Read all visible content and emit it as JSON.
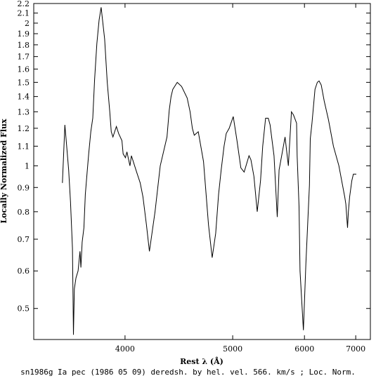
{
  "chart_data": {
    "type": "line",
    "title": "",
    "xlabel": "Rest λ (Å)",
    "ylabel": "Locally Normalized Flux",
    "caption": "sn1986g Ia pec (1986 05 09) deredsh. by hel. vel.   566. km/s ;  Loc. Norm.",
    "xscale": "reciprocal",
    "yscale": "log",
    "xlim": [
      3420,
      7350
    ],
    "ylim": [
      0.43,
      2.2
    ],
    "xticks": [
      4000,
      5000,
      6000,
      7000
    ],
    "xtick_labels": [
      "4000",
      "5000",
      "6000",
      "7000"
    ],
    "yticks": [
      0.5,
      0.6,
      0.7,
      0.8,
      0.9,
      1,
      1.1,
      1.2,
      1.3,
      1.4,
      1.5,
      1.6,
      1.7,
      1.8,
      1.9,
      2,
      2.1,
      2.2
    ],
    "ytick_labels": [
      "0.5",
      "0.6",
      "0.7",
      "0.8",
      "0.9",
      "1",
      "1.1",
      "1.2",
      "1.3",
      "1.4",
      "1.5",
      "1.6",
      "1.7",
      "1.8",
      "1.9",
      "2",
      "2.1",
      "2.2"
    ],
    "grid": false,
    "series": [
      {
        "name": "",
        "color": "#000000",
        "x": [
          3583,
          3598,
          3605,
          3621,
          3632,
          3644,
          3650,
          3656,
          3666,
          3679,
          3691,
          3697,
          3705,
          3716,
          3725,
          3737,
          3747,
          3761,
          3774,
          3786,
          3801,
          3816,
          3830,
          3854,
          3872,
          3890,
          3900,
          3912,
          3937,
          3953,
          3977,
          3986,
          4003,
          4014,
          4037,
          4048,
          4088,
          4116,
          4138,
          4166,
          4190,
          4236,
          4280,
          4338,
          4358,
          4374,
          4390,
          4430,
          4470,
          4522,
          4550,
          4572,
          4590,
          4630,
          4683,
          4734,
          4773,
          4810,
          4841,
          4870,
          4902,
          4926,
          4960,
          5007,
          5050,
          5097,
          5137,
          5197,
          5221,
          5259,
          5302,
          5346,
          5375,
          5414,
          5450,
          5476,
          5531,
          5577,
          5604,
          5692,
          5742,
          5790,
          5822,
          5871,
          5880,
          5911,
          5927,
          5982,
          6024,
          6084,
          6099,
          6128,
          6181,
          6223,
          6255,
          6294,
          6349,
          6431,
          6526,
          6637,
          6758,
          6782,
          6818,
          6836,
          6864,
          6913,
          6947,
          7013
        ],
        "values": [
          0.92,
          1.22,
          1.14,
          0.98,
          0.84,
          0.67,
          0.44,
          0.55,
          0.58,
          0.6,
          0.66,
          0.61,
          0.69,
          0.74,
          0.87,
          0.97,
          1.06,
          1.18,
          1.26,
          1.52,
          1.81,
          2.03,
          2.16,
          1.85,
          1.5,
          1.3,
          1.18,
          1.15,
          1.21,
          1.17,
          1.13,
          1.06,
          1.04,
          1.07,
          1.0,
          1.05,
          0.97,
          0.92,
          0.86,
          0.75,
          0.66,
          0.8,
          1.0,
          1.15,
          1.31,
          1.4,
          1.45,
          1.5,
          1.47,
          1.39,
          1.3,
          1.2,
          1.16,
          1.18,
          1.02,
          0.75,
          0.64,
          0.72,
          0.87,
          0.98,
          1.1,
          1.17,
          1.2,
          1.27,
          1.13,
          0.99,
          0.97,
          1.05,
          1.03,
          0.95,
          0.8,
          0.93,
          1.1,
          1.26,
          1.26,
          1.22,
          1.05,
          0.78,
          0.98,
          1.15,
          1.0,
          1.3,
          1.28,
          1.23,
          1.05,
          0.82,
          0.6,
          0.45,
          0.62,
          0.91,
          1.14,
          1.23,
          1.45,
          1.5,
          1.51,
          1.48,
          1.37,
          1.25,
          1.1,
          1.0,
          0.86,
          0.83,
          0.74,
          0.8,
          0.86,
          0.93,
          0.96,
          0.96
        ]
      }
    ]
  }
}
